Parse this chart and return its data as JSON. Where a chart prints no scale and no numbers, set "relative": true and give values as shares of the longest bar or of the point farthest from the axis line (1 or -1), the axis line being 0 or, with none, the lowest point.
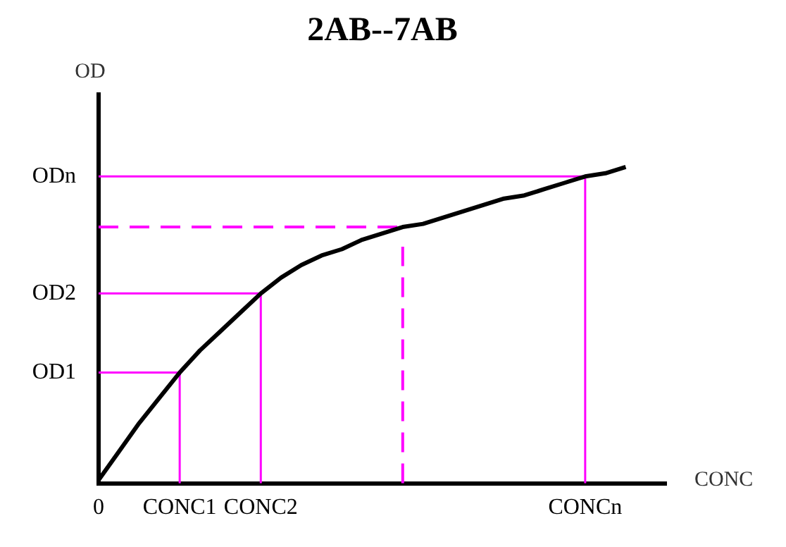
{
  "chart_data": {
    "type": "line",
    "relative": true,
    "title": "2AB--7AB",
    "xlabel": "CONC",
    "ylabel": "OD",
    "categories": [
      "0",
      null,
      null,
      null,
      "CONC1",
      null,
      null,
      null,
      "CONC2",
      null,
      null,
      null,
      null,
      null,
      null,
      null,
      null,
      null,
      null,
      null,
      null,
      null,
      null,
      null,
      "CONCn",
      null,
      null,
      null,
      null
    ],
    "grid": false,
    "legend": false,
    "marker": "none",
    "line_style": "solid",
    "series": [
      {
        "color": "#000000",
        "values": [
          0.01,
          0.1,
          0.19,
          0.27,
          0.35,
          0.42,
          0.48,
          0.54,
          0.6,
          0.65,
          0.69,
          0.72,
          0.74,
          0.77,
          0.79,
          0.81,
          0.82,
          0.84,
          0.86,
          0.88,
          0.9,
          0.91,
          0.93,
          0.95,
          0.97,
          0.98,
          1,
          null,
          null
        ]
      }
    ],
    "ref_lines": [
      {
        "axis": "y",
        "value": 0.35,
        "label": "OD1",
        "color": "#ff00ff"
      },
      {
        "axis": "y",
        "value": 0.6,
        "label": "OD2",
        "color": "#ff00ff"
      },
      {
        "axis": "y",
        "value": 0.97,
        "label": "ODn",
        "color": "#ff00ff"
      },
      {
        "axis": "y",
        "value": 0.81,
        "color": "#ff00ff",
        "line_style": "dashed"
      },
      {
        "axis": "x",
        "value": "CONC1",
        "color": "#ff00ff"
      },
      {
        "axis": "x",
        "value": "CONC2",
        "color": "#ff00ff"
      },
      {
        "axis": "x",
        "value": "CONCn",
        "color": "#ff00ff"
      }
    ]
  }
}
